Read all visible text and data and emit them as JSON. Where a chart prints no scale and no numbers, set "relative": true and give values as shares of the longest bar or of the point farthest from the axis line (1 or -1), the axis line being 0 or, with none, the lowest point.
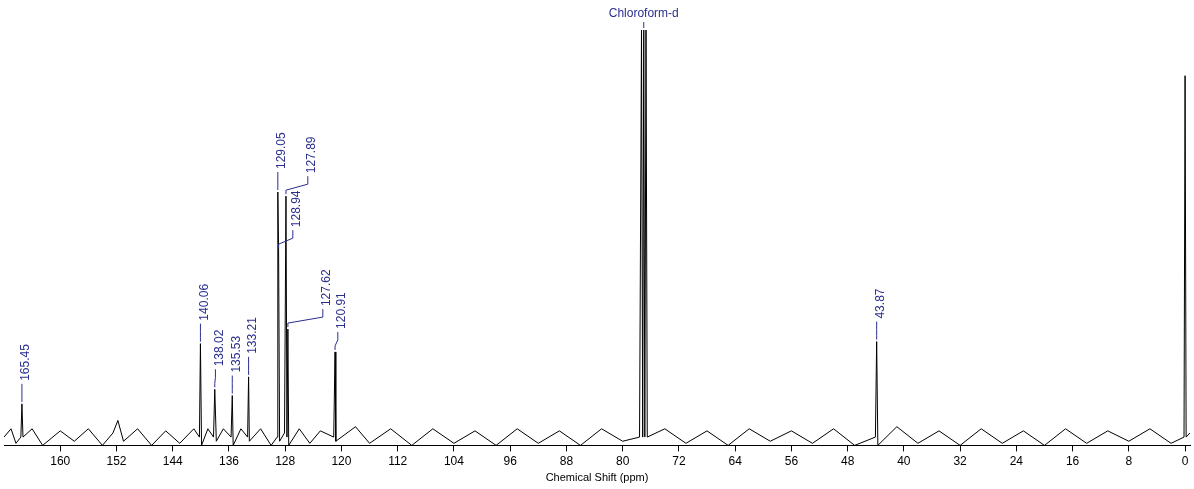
{
  "chart_data": {
    "type": "line",
    "relative": true,
    "xlabel": "Chemical Shift (ppm)",
    "xlim": [
      168,
      -0.7
    ],
    "xticks": [
      160,
      152,
      144,
      136,
      128,
      120,
      112,
      104,
      96,
      88,
      80,
      72,
      64,
      56,
      48,
      40,
      32,
      24,
      16,
      8,
      0
    ],
    "grid": false,
    "legend": false,
    "marker": "none",
    "line_style": "solid",
    "series": [
      {
        "color": "#000000",
        "x": [
          168,
          167,
          166.3,
          165.6,
          165.45,
          165.3,
          164,
          162.5,
          160,
          158,
          156,
          154,
          152.5,
          151.8,
          151,
          149,
          147,
          145,
          143,
          141,
          140.2,
          140.06,
          139.9,
          139,
          138.2,
          138.02,
          137.8,
          136.8,
          135.7,
          135.53,
          135.4,
          134.3,
          133.35,
          133.21,
          133.1,
          131.5,
          130,
          129.15,
          129.05,
          128.94,
          128.8,
          128.1,
          127.89,
          127.75,
          127.62,
          127.5,
          126,
          124.5,
          123,
          121.1,
          120.91,
          120.8,
          118,
          116,
          113,
          110,
          107,
          104,
          101,
          98,
          95,
          92,
          89,
          86,
          83,
          80,
          77.6,
          77.32,
          77.15,
          77.0,
          76.85,
          76.68,
          76.5,
          74,
          71,
          68,
          65,
          62,
          59,
          56,
          53,
          50,
          47,
          44.05,
          43.87,
          43.7,
          41,
          38,
          35,
          32,
          29,
          26,
          23,
          20,
          17,
          14,
          11,
          8,
          5,
          2,
          0.15,
          0,
          -0.15,
          -0.7
        ],
        "values": [
          0.02,
          0.04,
          0.005,
          0.02,
          0.1,
          0.02,
          0.04,
          0.0,
          0.035,
          0.01,
          0.04,
          0.0,
          0.03,
          0.06,
          0.01,
          0.04,
          0.0,
          0.035,
          0.005,
          0.04,
          0.02,
          0.245,
          0.0,
          0.04,
          0.02,
          0.135,
          0.01,
          0.04,
          0.02,
          0.12,
          0.0,
          0.04,
          0.02,
          0.165,
          0.01,
          0.04,
          0.0,
          0.02,
          0.61,
          0.47,
          0.01,
          0.03,
          0.6,
          0.02,
          0.28,
          0.0,
          0.04,
          0.005,
          0.035,
          0.02,
          0.225,
          0.01,
          0.045,
          0.005,
          0.04,
          0.0,
          0.04,
          0.005,
          0.035,
          0.0,
          0.04,
          0.005,
          0.035,
          0.0,
          0.04,
          0.01,
          0.02,
          1,
          0.02,
          1,
          0.02,
          1,
          0.02,
          0.04,
          0.005,
          0.035,
          0.0,
          0.04,
          0.01,
          0.035,
          0.005,
          0.04,
          0.0,
          0.02,
          0.25,
          0.0,
          0.045,
          0.005,
          0.035,
          0.0,
          0.04,
          0.005,
          0.035,
          0.0,
          0.04,
          0.005,
          0.035,
          0.01,
          0.04,
          0.005,
          0.02,
          0.89,
          0.02,
          0.03
        ]
      }
    ],
    "annotations": [
      {
        "text": "165.45",
        "x": 165.45,
        "y": 0.1
      },
      {
        "text": "140.06",
        "x": 140.06,
        "y": 0.245
      },
      {
        "text": "138.02",
        "x": 138.02,
        "y": 0.135
      },
      {
        "text": "135.53",
        "x": 135.53,
        "y": 0.12
      },
      {
        "text": "133.21",
        "x": 133.21,
        "y": 0.165
      },
      {
        "text": "129.05",
        "x": 129.05,
        "y": 0.61
      },
      {
        "text": "128.94",
        "x": 128.94,
        "y": 0.47
      },
      {
        "text": "127.89",
        "x": 127.89,
        "y": 0.6
      },
      {
        "text": "127.62",
        "x": 127.62,
        "y": 0.28
      },
      {
        "text": "120.91",
        "x": 120.91,
        "y": 0.225
      },
      {
        "text": "43.87",
        "x": 43.87,
        "y": 0.25
      },
      {
        "text": "Chloroform-d",
        "x": 77.0,
        "y": 1
      }
    ]
  }
}
